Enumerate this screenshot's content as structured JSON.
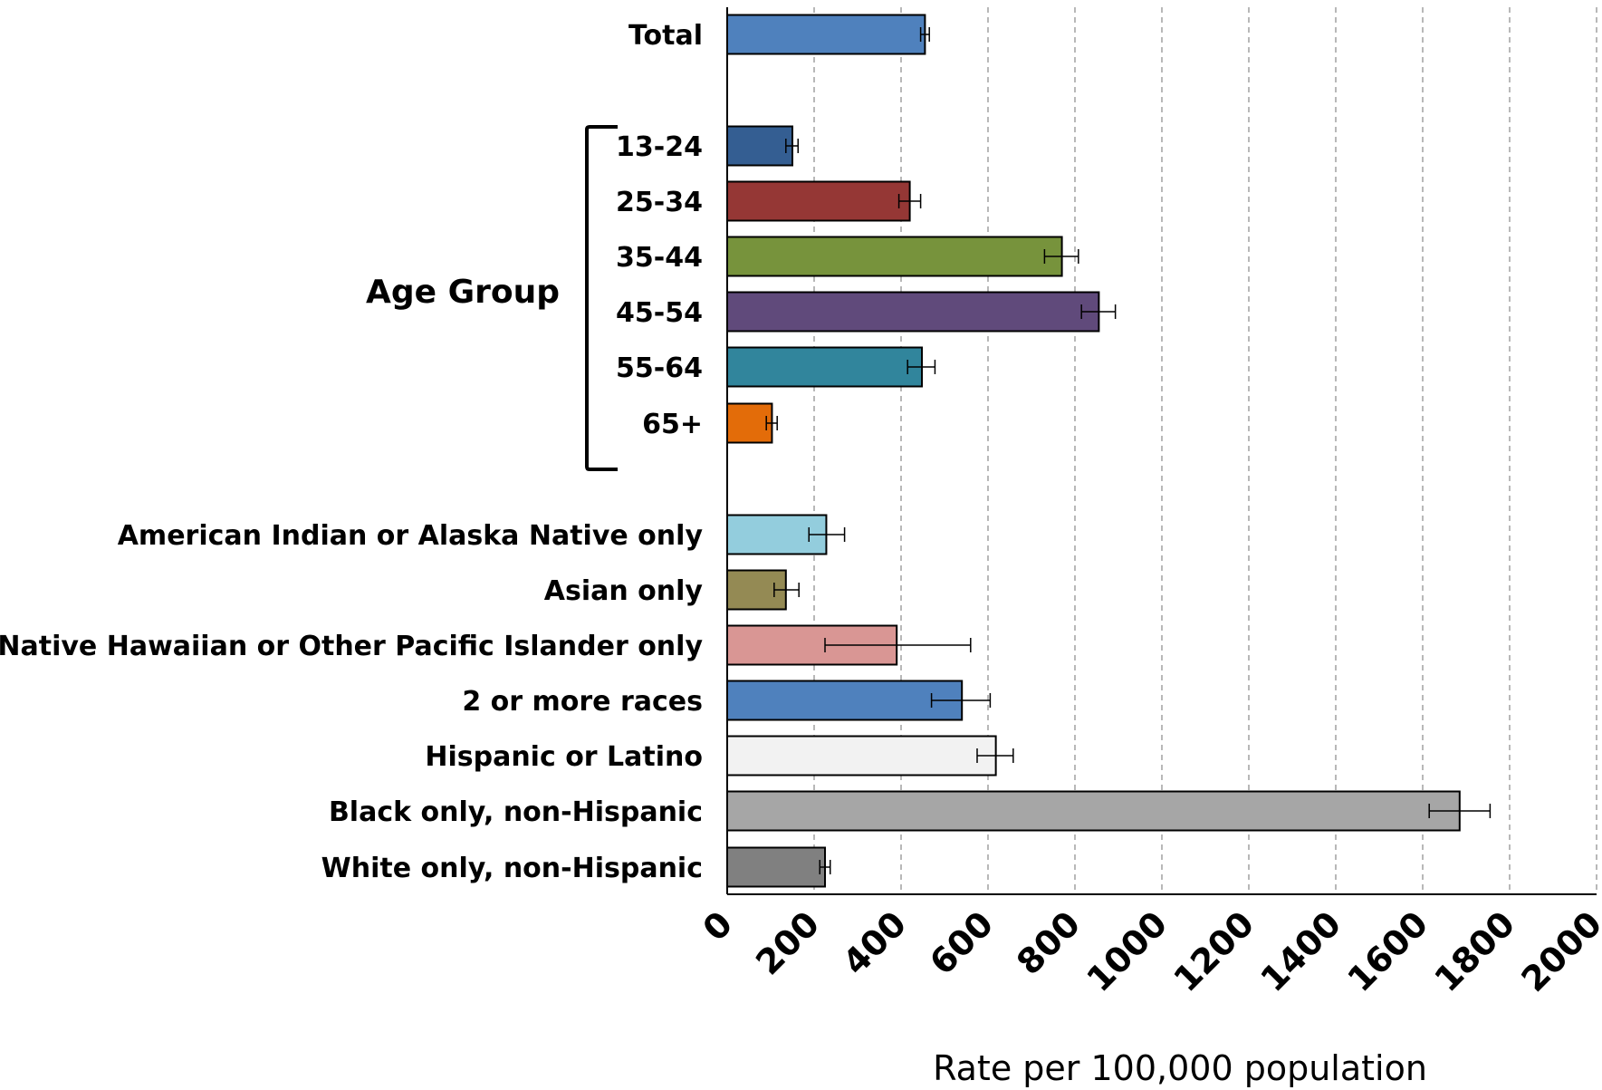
{
  "chart_data": {
    "type": "bar",
    "orientation": "horizontal",
    "xlabel": "Rate per 100,000 population",
    "xlim": [
      0,
      2000
    ],
    "xticks": [
      "0",
      "200",
      "400",
      "600",
      "800",
      "1000",
      "1200",
      "1400",
      "1600",
      "1800",
      "2000"
    ],
    "grid": "vertical dashed",
    "group_label": "Age Group",
    "categories": [
      {
        "label": "Total",
        "value": 455,
        "err_low": 445,
        "err_high": 465,
        "color": "#4f81bd"
      },
      {
        "label": "13-24",
        "value": 150,
        "err_low": 135,
        "err_high": 163,
        "color": "#345e92"
      },
      {
        "label": "25-34",
        "value": 420,
        "err_low": 395,
        "err_high": 445,
        "color": "#953735"
      },
      {
        "label": "35-44",
        "value": 770,
        "err_low": 730,
        "err_high": 808,
        "color": "#77933c"
      },
      {
        "label": "45-54",
        "value": 855,
        "err_low": 815,
        "err_high": 893,
        "color": "#604a7b"
      },
      {
        "label": "55-64",
        "value": 448,
        "err_low": 415,
        "err_high": 478,
        "color": "#31859c"
      },
      {
        "label": "65+",
        "value": 103,
        "err_low": 90,
        "err_high": 115,
        "color": "#e36c09"
      },
      {
        "label": "American Indian or Alaska Native only",
        "value": 228,
        "err_low": 188,
        "err_high": 270,
        "color": "#93cddd"
      },
      {
        "label": "Asian only",
        "value": 135,
        "err_low": 108,
        "err_high": 165,
        "color": "#948a54"
      },
      {
        "label": "Native Hawaiian or Other Pacific Islander only",
        "value": 390,
        "err_low": 225,
        "err_high": 560,
        "color": "#d99694"
      },
      {
        "label": "2 or more races",
        "value": 540,
        "err_low": 470,
        "err_high": 605,
        "color": "#4f81bd"
      },
      {
        "label": "Hispanic or Latino",
        "value": 618,
        "err_low": 575,
        "err_high": 658,
        "color": "#f2f2f2"
      },
      {
        "label": "Black only, non-Hispanic",
        "value": 1685,
        "err_low": 1615,
        "err_high": 1755,
        "color": "#a6a6a6"
      },
      {
        "label": "White only, non-Hispanic",
        "value": 225,
        "err_low": 213,
        "err_high": 237,
        "color": "#808080"
      }
    ]
  }
}
